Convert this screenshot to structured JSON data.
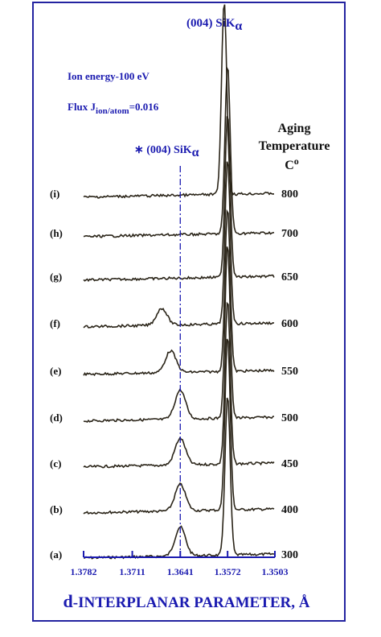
{
  "annotations": {
    "sik_main": "(004) SiK",
    "sik_main_sub": "α",
    "ion_energy": "Ion energy-100 eV",
    "flux_prefix": "Flux J",
    "flux_sub": "ion/atom",
    "flux_value": "=0.016",
    "sik_star": "∗ (004) SiK",
    "sik_star_sub": "α"
  },
  "legend_title": {
    "line1": "Aging",
    "line2": "Temperature",
    "line3": "C",
    "line3_sup": "o"
  },
  "xaxis": {
    "label_d": "d",
    "label_rest": "-INTERPLANAR PARAMETER, Å"
  },
  "colors": {
    "frame": "#2323a0",
    "axis": "#1b1bb0",
    "curves": "#2a2418"
  },
  "chart_data": {
    "type": "line",
    "title": "",
    "xlabel": "d-INTERPLANAR PARAMETER, Å",
    "ylabel": "",
    "x_ticks": [
      "1.3782",
      "1.3711",
      "1.3641",
      "1.3572",
      "1.3503"
    ],
    "xlim": [
      1.3782,
      1.3503
    ],
    "reference_lines": [
      {
        "x": 1.3641,
        "style": "dash-dot"
      }
    ],
    "legend_title": "Aging Temperature C°",
    "series": [
      {
        "name": "(a)",
        "temperature": "300",
        "peaks": [
          {
            "x": 1.3641,
            "height": 0.6
          },
          {
            "x": 1.3572,
            "height": 3.3
          }
        ]
      },
      {
        "name": "(b)",
        "temperature": "400",
        "peaks": [
          {
            "x": 1.3641,
            "height": 0.55
          },
          {
            "x": 1.3572,
            "height": 3.6
          }
        ]
      },
      {
        "name": "(c)",
        "temperature": "450",
        "peaks": [
          {
            "x": 1.3641,
            "height": 0.55
          },
          {
            "x": 1.3572,
            "height": 3.4
          }
        ]
      },
      {
        "name": "(d)",
        "temperature": "500",
        "peaks": [
          {
            "x": 1.3641,
            "height": 0.6
          },
          {
            "x": 1.3572,
            "height": 3.6
          }
        ]
      },
      {
        "name": "(e)",
        "temperature": "550",
        "peaks": [
          {
            "x": 1.3655,
            "height": 0.45
          },
          {
            "x": 1.3572,
            "height": 3.4
          }
        ]
      },
      {
        "name": "(f)",
        "temperature": "600",
        "peaks": [
          {
            "x": 1.3668,
            "height": 0.35
          },
          {
            "x": 1.3572,
            "height": 3.4
          }
        ]
      },
      {
        "name": "(g)",
        "temperature": "650",
        "peaks": [
          {
            "x": 1.3572,
            "height": 3.4
          }
        ]
      },
      {
        "name": "(h)",
        "temperature": "700",
        "peaks": [
          {
            "x": 1.3572,
            "height": 3.5
          }
        ]
      },
      {
        "name": "(i)",
        "temperature": "800",
        "peaks": [
          {
            "x": 1.3577,
            "height": 4.0
          }
        ]
      }
    ]
  }
}
